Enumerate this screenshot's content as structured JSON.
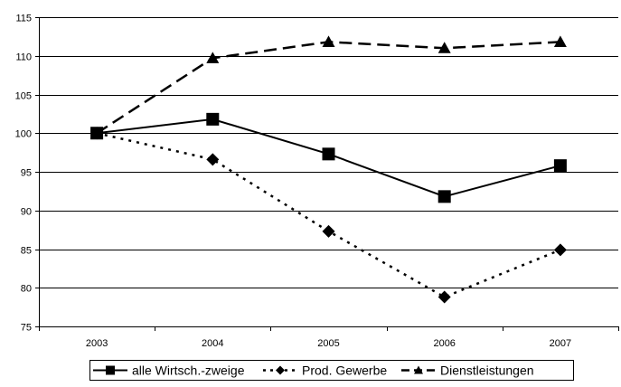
{
  "chart_data": {
    "type": "line",
    "categories": [
      "2003",
      "2004",
      "2005",
      "2006",
      "2007"
    ],
    "ylim": [
      75,
      115
    ],
    "yticks": [
      75,
      80,
      85,
      90,
      95,
      100,
      105,
      110,
      115
    ],
    "grid": "horizontal",
    "legend_position": "bottom",
    "title": "",
    "xlabel": "",
    "ylabel": "",
    "series": [
      {
        "name": "alle Wirtsch.-zweige",
        "values": [
          100,
          101.8,
          97.3,
          91.8,
          95.8
        ],
        "line_style": "solid",
        "marker": "square",
        "color": "#000000"
      },
      {
        "name": "Prod. Gewerbe",
        "values": [
          100,
          96.6,
          87.3,
          78.8,
          84.9
        ],
        "line_style": "dotted",
        "marker": "diamond",
        "color": "#000000"
      },
      {
        "name": "Dienstleistungen",
        "values": [
          100,
          109.7,
          111.8,
          111.0,
          111.8
        ],
        "line_style": "dashed",
        "marker": "triangle",
        "color": "#000000"
      }
    ]
  }
}
